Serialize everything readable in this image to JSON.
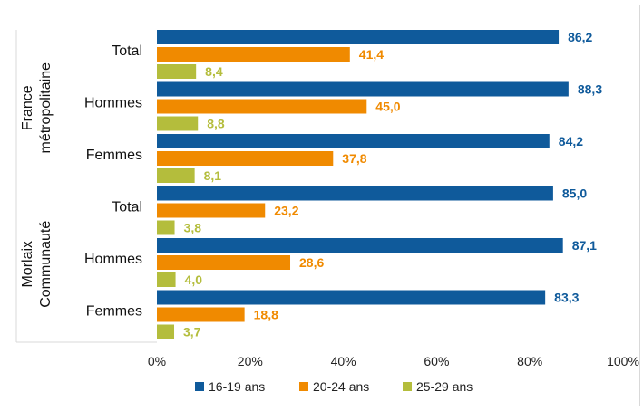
{
  "chart_data": {
    "type": "bar",
    "orientation": "horizontal",
    "groups": [
      {
        "label_lines": [
          "France",
          "métropolitaine"
        ],
        "categories": [
          "Total",
          "Hommes",
          "Femmes"
        ]
      },
      {
        "label_lines": [
          "Morlaix",
          "Communauté"
        ],
        "categories": [
          "Total",
          "Hommes",
          "Femmes"
        ]
      }
    ],
    "series": [
      {
        "name": "16-19 ans",
        "color": "#0f5a9b",
        "values": [
          86.2,
          88.3,
          84.2,
          85.0,
          87.1,
          83.3
        ],
        "labels": [
          "86,2",
          "88,3",
          "84,2",
          "85,0",
          "87,1",
          "83,3"
        ]
      },
      {
        "name": "20-24 ans",
        "color": "#f08a00",
        "values": [
          41.4,
          45.0,
          37.8,
          23.2,
          28.6,
          18.8
        ],
        "labels": [
          "41,4",
          "45,0",
          "37,8",
          "23,2",
          "28,6",
          "18,8"
        ]
      },
      {
        "name": "25-29 ans",
        "color": "#b4bd3c",
        "values": [
          8.4,
          8.8,
          8.1,
          3.8,
          4.0,
          3.7
        ],
        "labels": [
          "8,4",
          "8,8",
          "8,1",
          "3,8",
          "4,0",
          "3,7"
        ]
      }
    ],
    "xlim": [
      0,
      100
    ],
    "xticks": [
      0,
      20,
      40,
      60,
      80,
      100
    ],
    "xtick_labels": [
      "0%",
      "20%",
      "40%",
      "60%",
      "80%",
      "100%"
    ],
    "grid": false,
    "legend_position": "bottom"
  }
}
